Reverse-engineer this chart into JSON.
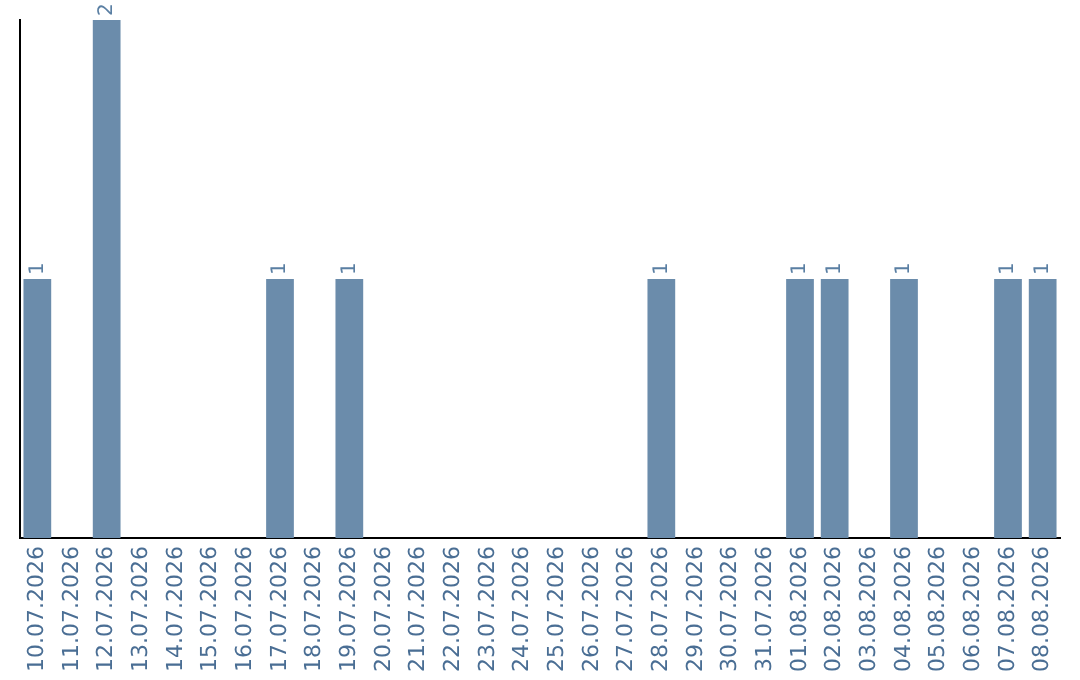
{
  "chart_data": {
    "type": "bar",
    "categories": [
      "10.07.2026",
      "11.07.2026",
      "12.07.2026",
      "13.07.2026",
      "14.07.2026",
      "15.07.2026",
      "16.07.2026",
      "17.07.2026",
      "18.07.2026",
      "19.07.2026",
      "20.07.2026",
      "21.07.2026",
      "22.07.2026",
      "23.07.2026",
      "24.07.2026",
      "25.07.2026",
      "26.07.2026",
      "27.07.2026",
      "28.07.2026",
      "29.07.2026",
      "30.07.2026",
      "31.07.2026",
      "01.08.2026",
      "02.08.2026",
      "03.08.2026",
      "04.08.2026",
      "05.08.2026",
      "06.08.2026",
      "07.08.2026",
      "08.08.2026"
    ],
    "values": [
      1,
      0,
      2,
      0,
      0,
      0,
      0,
      1,
      0,
      1,
      0,
      0,
      0,
      0,
      0,
      0,
      0,
      0,
      1,
      0,
      0,
      0,
      1,
      1,
      0,
      1,
      0,
      0,
      1,
      1
    ],
    "value_labels": [
      "1",
      null,
      "2",
      null,
      null,
      null,
      null,
      "1",
      null,
      "1",
      null,
      null,
      null,
      null,
      null,
      null,
      null,
      null,
      "1",
      null,
      null,
      null,
      "1",
      "1",
      null,
      "1",
      null,
      null,
      "1",
      "1"
    ],
    "color": "#6b8cab",
    "tick_labels": "x",
    "grid": false,
    "legend": false
  }
}
